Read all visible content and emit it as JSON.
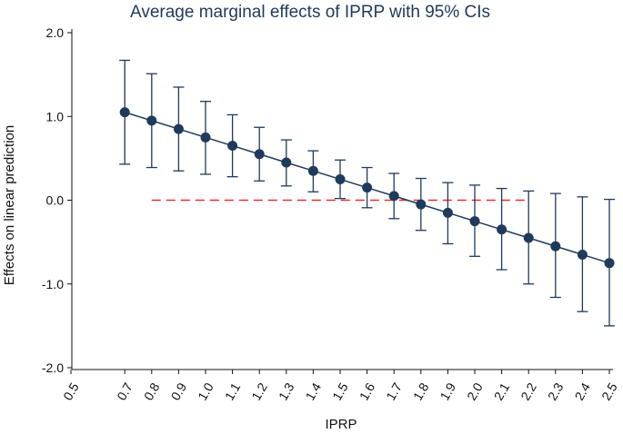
{
  "chart_data": {
    "type": "scatter",
    "title": "Average marginal effects of IPRP with 95% CIs",
    "xlabel": "IPRP",
    "ylabel": "Effects on linear prediction",
    "xlim": [
      0.5,
      2.5
    ],
    "ylim": [
      -2.0,
      2.0
    ],
    "x_ticks": [
      "0.5",
      "0.7",
      "0.8",
      "0.9",
      "1.0",
      "1.1",
      "1.2",
      "1.3",
      "1.4",
      "1.5",
      "1.6",
      "1.7",
      "1.8",
      "1.9",
      "2.0",
      "2.1",
      "2.2",
      "2.3",
      "2.4",
      "2.5"
    ],
    "y_ticks": [
      "2.0",
      "1.0",
      "0.0",
      "-1.0",
      "-2.0"
    ],
    "grid": false,
    "reference_line": {
      "y": 0,
      "x_from": 0.8,
      "x_to": 2.2,
      "style": "dashed",
      "color": "#e03131"
    },
    "series": [
      {
        "name": "Average marginal effect",
        "x": [
          0.7,
          0.8,
          0.9,
          1.0,
          1.1,
          1.2,
          1.3,
          1.4,
          1.5,
          1.6,
          1.7,
          1.8,
          1.9,
          2.0,
          2.1,
          2.2,
          2.3,
          2.4,
          2.5
        ],
        "y": [
          1.05,
          0.95,
          0.85,
          0.75,
          0.65,
          0.55,
          0.45,
          0.35,
          0.25,
          0.15,
          0.05,
          -0.05,
          -0.15,
          -0.25,
          -0.35,
          -0.45,
          -0.55,
          -0.65,
          -0.75
        ],
        "lower": [
          0.43,
          0.39,
          0.35,
          0.31,
          0.28,
          0.23,
          0.17,
          0.1,
          0.02,
          -0.09,
          -0.22,
          -0.36,
          -0.52,
          -0.67,
          -0.83,
          -1.0,
          -1.16,
          -1.33,
          -1.5
        ],
        "upper": [
          1.67,
          1.51,
          1.35,
          1.18,
          1.02,
          0.87,
          0.72,
          0.59,
          0.48,
          0.39,
          0.32,
          0.26,
          0.21,
          0.18,
          0.14,
          0.11,
          0.08,
          0.04,
          0.01
        ]
      }
    ],
    "colors": {
      "series": "#1f3a5a",
      "reference": "#e03131",
      "axis": "#111111"
    }
  }
}
